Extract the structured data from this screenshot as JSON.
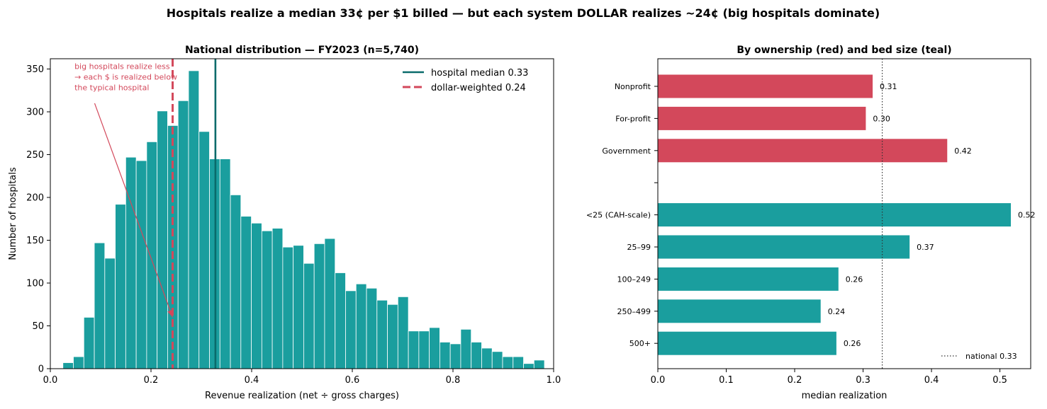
{
  "figure": {
    "suptitle": "Hospitals realize a median 33¢ per $1 billed — but each system DOLLAR realizes ~24¢ (big hospitals dominate)"
  },
  "colors": {
    "teal": "#1a9e9e",
    "dark_teal": "#0a6b6b",
    "red": "#d3485b",
    "annotation": "#d3485b"
  },
  "chart_data": [
    {
      "type": "bar",
      "subtype": "histogram",
      "title": "National distribution — FY2023 (n=5,740)",
      "xlabel": "Revenue realization (net ÷ gross charges)",
      "ylabel": "Number of hospitals",
      "xlim": [
        0.0,
        1.0
      ],
      "ylim": [
        0,
        362
      ],
      "xticks": [
        "0.0",
        "0.2",
        "0.4",
        "0.6",
        "0.8",
        "1.0"
      ],
      "yticks": [
        "0",
        "50",
        "100",
        "150",
        "200",
        "250",
        "300",
        "350"
      ],
      "bin_start": 0.025,
      "bin_width": 0.0208,
      "counts": [
        7,
        14,
        60,
        147,
        129,
        192,
        247,
        243,
        265,
        301,
        284,
        313,
        348,
        277,
        245,
        245,
        203,
        178,
        170,
        161,
        164,
        142,
        144,
        123,
        146,
        152,
        112,
        91,
        99,
        94,
        80,
        75,
        84,
        44,
        44,
        48,
        31,
        29,
        46,
        31,
        24,
        20,
        14,
        14,
        6,
        10
      ],
      "reference_lines": [
        {
          "name": "hospital median 0.33",
          "x": 0.328,
          "style": "solid",
          "color": "#0a6b6b"
        },
        {
          "name": "dollar-weighted 0.24",
          "x": 0.243,
          "style": "dashed",
          "color": "#d3485b"
        }
      ],
      "legend": {
        "placement": "upper-right",
        "entries": [
          "hospital median 0.33",
          "dollar-weighted 0.24"
        ]
      },
      "annotation": {
        "lines": [
          "big hospitals realize less",
          "→ each $ is realized below",
          "the typical hospital"
        ],
        "text_at": [
          0.048,
          350
        ],
        "arrow_from": [
          0.088,
          310
        ],
        "arrow_to": [
          0.243,
          60
        ]
      }
    },
    {
      "type": "bar",
      "orientation": "horizontal",
      "title": "By ownership (red) and bed size (teal)",
      "xlabel": "median realization",
      "xlim": [
        0.0,
        0.545
      ],
      "xticks": [
        "0.0",
        "0.1",
        "0.2",
        "0.3",
        "0.4",
        "0.5"
      ],
      "categories": [
        "Nonprofit",
        "For-profit",
        "Government",
        "",
        "<25 (CAH-scale)",
        "25–99",
        "100–249",
        "250–499",
        "500+"
      ],
      "values": [
        0.314,
        0.304,
        0.423,
        null,
        0.516,
        0.368,
        0.264,
        0.238,
        0.261
      ],
      "labels": [
        "0.31",
        "0.30",
        "0.42",
        "",
        "0.52",
        "0.37",
        "0.26",
        "0.24",
        "0.26"
      ],
      "groups": [
        "ownership",
        "ownership",
        "ownership",
        "spacer",
        "bed_size",
        "bed_size",
        "bed_size",
        "bed_size",
        "bed_size"
      ],
      "reference_line": {
        "name": "national 0.33",
        "x": 0.328,
        "style": "dotted"
      },
      "legend": {
        "placement": "lower-right",
        "entries": [
          "national 0.33"
        ]
      }
    }
  ]
}
